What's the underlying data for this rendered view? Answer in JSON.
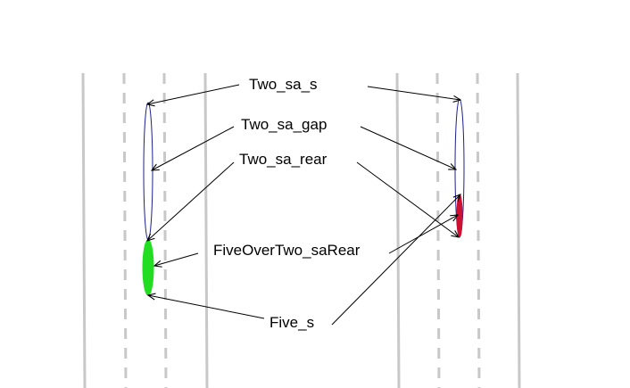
{
  "labels": {
    "two_sa_s": "Two_sa_s",
    "two_sa_gap": "Two_sa_gap",
    "two_sa_rear": "Two_sa_rear",
    "five_over_two_sa_rear": "FiveOverTwo_saRear",
    "five_s": "Five_s"
  },
  "colors": {
    "lane_line": "#c8c8c8",
    "vehicle_outline": "#1f1f8f",
    "five_over_two_sa_rear_fill": "#22dd22",
    "right_rear_segment": "#cc1133",
    "arrow": "#000000"
  }
}
